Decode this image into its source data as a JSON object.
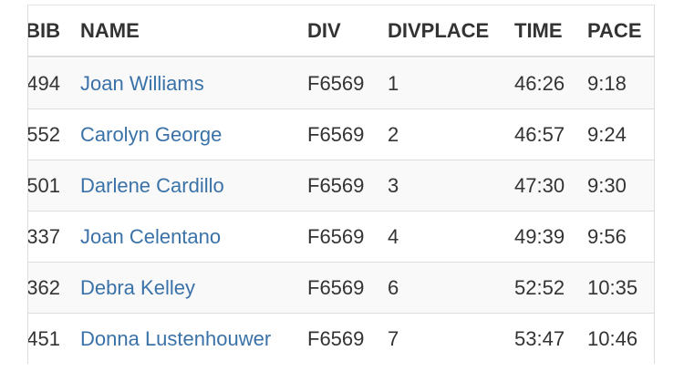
{
  "table": {
    "header": [
      "BIB",
      "NAME",
      "DIV",
      "DIVPLACE",
      "TIME",
      "PACE"
    ],
    "rows": [
      [
        "494",
        "Joan Williams",
        "F6569",
        "1",
        "46:26",
        "9:18"
      ],
      [
        "552",
        "Carolyn George",
        "F6569",
        "2",
        "46:57",
        "9:24"
      ],
      [
        "501",
        "Darlene Cardillo",
        "F6569",
        "3",
        "47:30",
        "9:30"
      ],
      [
        "337",
        "Joan Celentano",
        "F6569",
        "4",
        "49:39",
        "9:56"
      ],
      [
        "362",
        "Debra Kelley",
        "F6569",
        "6",
        "52:52",
        "10:35"
      ],
      [
        "451",
        "Donna Lustenhouwer",
        "F6569",
        "7",
        "53:47",
        "10:46"
      ]
    ]
  }
}
